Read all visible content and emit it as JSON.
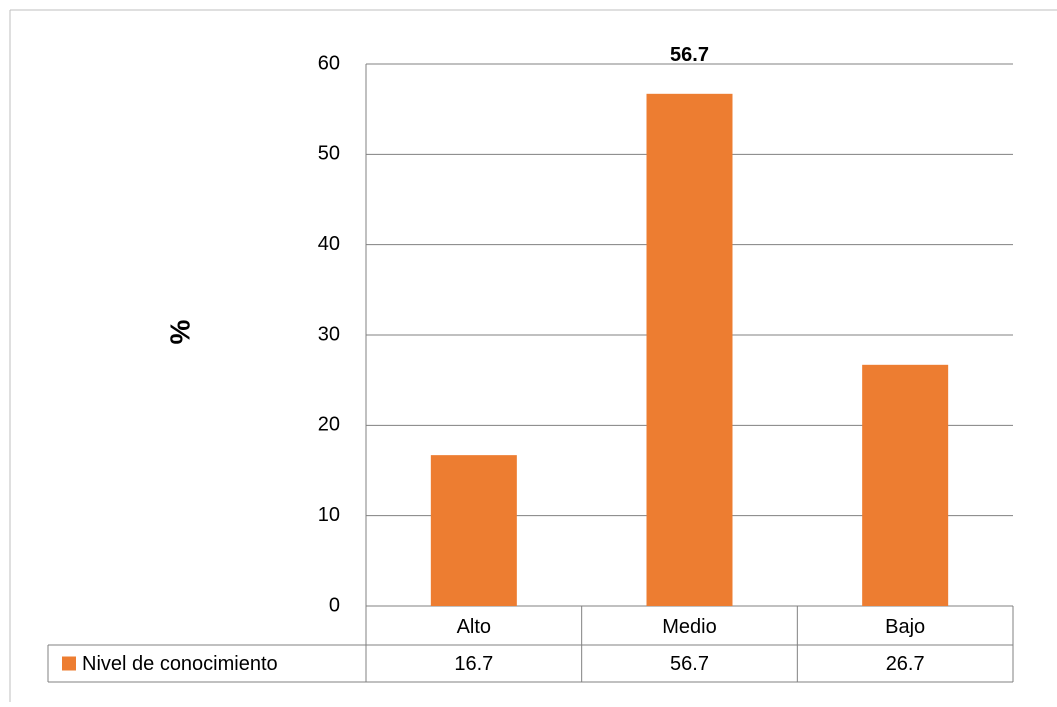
{
  "chart_data": {
    "type": "bar",
    "categories": [
      "Alto",
      "Medio",
      "Bajo"
    ],
    "series": [
      {
        "name": "Nivel de conocimiento",
        "values": [
          16.7,
          56.7,
          26.7
        ],
        "color": "#ED7D31"
      }
    ],
    "data_table_values": [
      "16.7",
      "56.7",
      "26.7"
    ],
    "data_labels": [
      {
        "category": "Medio",
        "text": "56.7"
      }
    ],
    "title": "",
    "xlabel": "",
    "ylabel": "%",
    "ylim": [
      0,
      60
    ],
    "yticks": [
      0,
      10,
      20,
      30,
      40,
      50,
      60
    ],
    "grid": true,
    "legend": "data-table-left",
    "colors": {
      "gridline": "#808080",
      "frame": "#bfbfbf"
    }
  }
}
